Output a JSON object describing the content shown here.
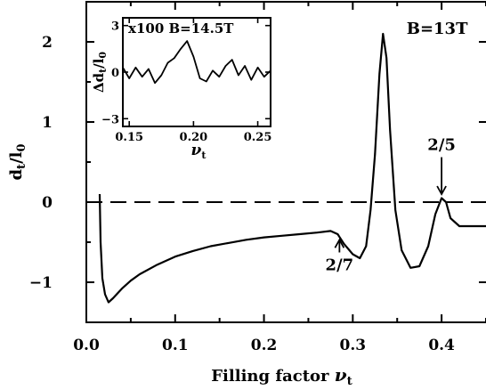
{
  "chart_data": [
    {
      "type": "line",
      "title": "",
      "xlabel": "Filling factor νt",
      "ylabel": "dt/l0",
      "xlim": [
        0.0,
        0.45
      ],
      "ylim": [
        -1.5,
        2.5
      ],
      "xticks": [
        0.0,
        0.1,
        0.2,
        0.3,
        0.4
      ],
      "yticks": [
        -1,
        0,
        1,
        2
      ],
      "x_tick_labels": [
        "0.0",
        "0.1",
        "0.2",
        "0.3",
        "0.4"
      ],
      "y_tick_labels": [
        "−1",
        "0",
        "1",
        "2"
      ],
      "grid": false,
      "reference_line": {
        "y": 0,
        "style": "dashed"
      },
      "series": [
        {
          "points": [
            [
              0.015,
              0.1
            ],
            [
              0.016,
              -0.5
            ],
            [
              0.018,
              -0.95
            ],
            [
              0.021,
              -1.15
            ],
            [
              0.025,
              -1.25
            ],
            [
              0.03,
              -1.2
            ],
            [
              0.04,
              -1.08
            ],
            [
              0.05,
              -0.98
            ],
            [
              0.06,
              -0.9
            ],
            [
              0.08,
              -0.78
            ],
            [
              0.1,
              -0.68
            ],
            [
              0.12,
              -0.61
            ],
            [
              0.14,
              -0.55
            ],
            [
              0.16,
              -0.51
            ],
            [
              0.18,
              -0.47
            ],
            [
              0.2,
              -0.44
            ],
            [
              0.22,
              -0.42
            ],
            [
              0.24,
              -0.4
            ],
            [
              0.26,
              -0.38
            ],
            [
              0.275,
              -0.36
            ],
            [
              0.283,
              -0.4
            ],
            [
              0.29,
              -0.52
            ],
            [
              0.3,
              -0.65
            ],
            [
              0.308,
              -0.7
            ],
            [
              0.315,
              -0.55
            ],
            [
              0.32,
              -0.1
            ],
            [
              0.325,
              0.6
            ],
            [
              0.33,
              1.6
            ],
            [
              0.334,
              2.1
            ],
            [
              0.338,
              1.8
            ],
            [
              0.342,
              0.9
            ],
            [
              0.348,
              -0.1
            ],
            [
              0.355,
              -0.6
            ],
            [
              0.365,
              -0.82
            ],
            [
              0.375,
              -0.8
            ],
            [
              0.385,
              -0.55
            ],
            [
              0.393,
              -0.15
            ],
            [
              0.4,
              0.05
            ],
            [
              0.405,
              0.0
            ],
            [
              0.41,
              -0.2
            ],
            [
              0.42,
              -0.3
            ],
            [
              0.43,
              -0.3
            ],
            [
              0.45,
              -0.3
            ]
          ]
        }
      ],
      "annotations": [
        {
          "text": "B=13T",
          "x": 0.395,
          "y": 2.1
        },
        {
          "text": "2/7",
          "x": 0.285,
          "y": -0.85,
          "arrow_to": [
            0.285,
            -0.47
          ]
        },
        {
          "text": "2/5",
          "x": 0.4,
          "y": 0.65,
          "arrow_to": [
            0.4,
            0.1
          ]
        }
      ]
    },
    {
      "type": "line",
      "title": "x100 B=14.5T",
      "xlabel": "νt",
      "ylabel": "Δdt/l0",
      "xlim": [
        0.145,
        0.26
      ],
      "ylim": [
        -3.5,
        3.5
      ],
      "xticks": [
        0.15,
        0.2,
        0.25
      ],
      "yticks": [
        -3,
        0,
        3
      ],
      "x_tick_labels": [
        "0.15",
        "0.20",
        "0.25"
      ],
      "y_tick_labels": [
        "−3",
        "0",
        "3"
      ],
      "grid": false,
      "series": [
        {
          "points": [
            [
              0.145,
              0.3
            ],
            [
              0.15,
              -0.4
            ],
            [
              0.155,
              0.3
            ],
            [
              0.16,
              -0.3
            ],
            [
              0.165,
              0.2
            ],
            [
              0.17,
              -0.7
            ],
            [
              0.175,
              -0.2
            ],
            [
              0.18,
              0.6
            ],
            [
              0.185,
              0.9
            ],
            [
              0.19,
              1.5
            ],
            [
              0.195,
              2.0
            ],
            [
              0.2,
              1.0
            ],
            [
              0.205,
              -0.4
            ],
            [
              0.21,
              -0.6
            ],
            [
              0.215,
              0.1
            ],
            [
              0.22,
              -0.3
            ],
            [
              0.225,
              0.4
            ],
            [
              0.23,
              0.8
            ],
            [
              0.235,
              -0.2
            ],
            [
              0.24,
              0.4
            ],
            [
              0.245,
              -0.5
            ],
            [
              0.25,
              0.3
            ],
            [
              0.255,
              -0.3
            ],
            [
              0.26,
              0.1
            ]
          ]
        }
      ]
    }
  ]
}
